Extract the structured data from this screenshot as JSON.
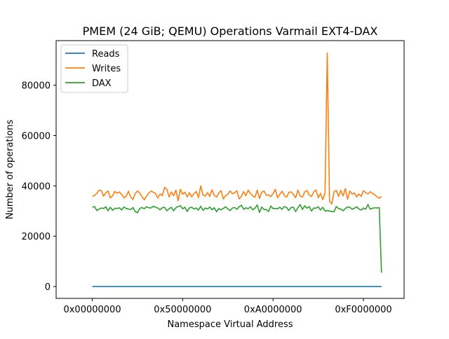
{
  "chart_data": {
    "type": "line",
    "title": "PMEM (24 GiB; QEMU) Operations Varmail EXT4-DAX",
    "xlabel": "Namespace Virtual Address",
    "ylabel": "Number of operations",
    "x_ticks": [
      {
        "label": "0x00000000",
        "value": 0
      },
      {
        "label": "0x50000000",
        "value": 1342177280
      },
      {
        "label": "0xA0000000",
        "value": 2684354560
      },
      {
        "label": "0xF0000000",
        "value": 4026531840
      }
    ],
    "y_ticks": [
      {
        "label": "0",
        "value": 0
      },
      {
        "label": "20000",
        "value": 20000
      },
      {
        "label": "40000",
        "value": 40000
      },
      {
        "label": "60000",
        "value": 60000
      },
      {
        "label": "80000",
        "value": 80000
      }
    ],
    "xlim": [
      -536870912,
      4630511616
    ],
    "ylim": [
      -4700,
      97700
    ],
    "grid": false,
    "legend": "top-left",
    "x": [
      0,
      33554432,
      67108864,
      100663296,
      134217728,
      167772160,
      201326592,
      234881024,
      268435456,
      301989888,
      335544320,
      369098752,
      402653184,
      436207616,
      469762048,
      503316480,
      536870912,
      570425344,
      603979776,
      637534208,
      671088640,
      704643072,
      738197504,
      771751936,
      805306368,
      838860800,
      872415232,
      905969664,
      939524096,
      973078528,
      1006632960,
      1040187392,
      1073741824,
      1107296256,
      1140850688,
      1174405120,
      1207959552,
      1241513984,
      1275068416,
      1308622848,
      1342177280,
      1375731712,
      1409286144,
      1442840576,
      1476395008,
      1509949440,
      1543503872,
      1577058304,
      1610612736,
      1644167168,
      1677721600,
      1711276032,
      1744830464,
      1778384896,
      1811939328,
      1845493760,
      1879048192,
      1912602624,
      1946157056,
      1979711488,
      2013265920,
      2046820352,
      2080374784,
      2113929216,
      2147483648,
      2181038080,
      2214592512,
      2248146944,
      2281701376,
      2315255808,
      2348810240,
      2382364672,
      2415919104,
      2449473536,
      2483027968,
      2516582400,
      2550136832,
      2583691264,
      2617245696,
      2650800128,
      2684354560,
      2717908992,
      2751463424,
      2785017856,
      2818572288,
      2852126720,
      2885681152,
      2919235584,
      2952790016,
      2986344448,
      3019898880,
      3053453312,
      3087007744,
      3120562176,
      3154116608,
      3187671040,
      3221225472,
      3254779904,
      3288334336,
      3321888768,
      3355443200,
      3388997632,
      3422552064,
      3456106496,
      3489660928,
      3523215360,
      3556769792,
      3590324224,
      3623878656,
      3657433088,
      3690987520,
      3724541952,
      3758096384,
      3791650816,
      3825205248,
      3858759680,
      3892314112,
      3925868544,
      3959422976,
      3992977408,
      4026531840,
      4060086272,
      4093640704,
      4127195136,
      4160749568,
      4194304000,
      4227858432,
      4261412864,
      4294967296
    ],
    "series": [
      {
        "name": "Reads",
        "color": "#1f77b4",
        "values": [
          0,
          0,
          0,
          0,
          0,
          0,
          0,
          0,
          0,
          0,
          0,
          0,
          0,
          0,
          0,
          0,
          0,
          0,
          0,
          0,
          0,
          0,
          0,
          0,
          0,
          0,
          0,
          0,
          0,
          0,
          0,
          0,
          0,
          0,
          0,
          0,
          0,
          0,
          0,
          0,
          0,
          0,
          0,
          0,
          0,
          0,
          0,
          0,
          0,
          0,
          0,
          0,
          0,
          0,
          0,
          0,
          0,
          0,
          0,
          0,
          0,
          0,
          0,
          0,
          0,
          0,
          0,
          0,
          0,
          0,
          0,
          0,
          0,
          0,
          0,
          0,
          0,
          0,
          0,
          0,
          0,
          0,
          0,
          0,
          0,
          0,
          0,
          0,
          0,
          0,
          0,
          0,
          0,
          0,
          0,
          0,
          0,
          0,
          0,
          0,
          0,
          0,
          0,
          0,
          0,
          0,
          0,
          0,
          0,
          0,
          0,
          0,
          0,
          0,
          0,
          0,
          0,
          0,
          0,
          0,
          0,
          0,
          0,
          0,
          0,
          0,
          0,
          0,
          0
        ]
      },
      {
        "name": "Writes",
        "color": "#ff7f0e",
        "values": [
          35800,
          36200,
          37000,
          38300,
          38100,
          35900,
          37200,
          38000,
          35200,
          36100,
          37800,
          37100,
          37600,
          36600,
          35300,
          35800,
          37900,
          35500,
          34600,
          36900,
          38000,
          37200,
          35700,
          34400,
          35900,
          37100,
          37900,
          37500,
          37000,
          35200,
          36800,
          36100,
          39400,
          38600,
          35600,
          37600,
          36100,
          38300,
          34100,
          38600,
          36700,
          37500,
          35600,
          37300,
          35600,
          36900,
          37800,
          35300,
          40000,
          36400,
          35900,
          37300,
          35800,
          38400,
          36200,
          35500,
          37200,
          38100,
          34800,
          36100,
          36700,
          38000,
          36900,
          37200,
          38100,
          34800,
          35900,
          37700,
          36100,
          38300,
          37000,
          36000,
          35500,
          38300,
          35000,
          37500,
          38000,
          36300,
          36400,
          35700,
          36900,
          38600,
          35300,
          36600,
          37900,
          36100,
          35500,
          37400,
          37600,
          36600,
          35300,
          38300,
          36000,
          35500,
          37600,
          38200,
          36300,
          35800,
          37600,
          38400,
          35300,
          37000,
          34500,
          37100,
          92800,
          33900,
          32800,
          37700,
          38200,
          35800,
          38200,
          36000,
          38900,
          34700,
          38000,
          36700,
          37200,
          35600,
          36800,
          35800,
          38100,
          37300,
          36800,
          37700,
          37000,
          36500,
          35700,
          35100,
          35700
        ]
      },
      {
        "name": "DAX",
        "color": "#2ca02c",
        "values": [
          31500,
          31800,
          30200,
          30800,
          31200,
          31000,
          31700,
          30100,
          31500,
          30300,
          31100,
          31000,
          31300,
          30400,
          31600,
          31000,
          30800,
          30600,
          31400,
          29800,
          29300,
          31000,
          31400,
          30900,
          31700,
          31300,
          31200,
          31900,
          31500,
          31200,
          30500,
          31300,
          31500,
          30100,
          30900,
          31500,
          30100,
          31300,
          31800,
          32100,
          30900,
          31500,
          29800,
          31300,
          31500,
          30800,
          31200,
          30400,
          31900,
          30300,
          31200,
          30800,
          31600,
          30500,
          31300,
          29700,
          31000,
          30500,
          31000,
          31700,
          30800,
          30200,
          31200,
          31400,
          30700,
          31700,
          32300,
          30700,
          31300,
          30900,
          31700,
          30500,
          31100,
          32400,
          29400,
          31600,
          30600,
          30600,
          29800,
          32000,
          31000,
          31000,
          30900,
          31500,
          30700,
          31800,
          31400,
          30200,
          31400,
          31500,
          29800,
          31300,
          32600,
          30600,
          32100,
          31100,
          31800,
          30000,
          31200,
          31100,
          31700,
          30400,
          31500,
          30000,
          30200,
          30000,
          29800,
          29700,
          31800,
          31000,
          30800,
          30100,
          31000,
          31600,
          31500,
          30700,
          31100,
          31700,
          30800,
          30400,
          31200,
          30700,
          32600,
          30700,
          31100,
          31300,
          31200,
          31400,
          5500
        ]
      }
    ]
  }
}
